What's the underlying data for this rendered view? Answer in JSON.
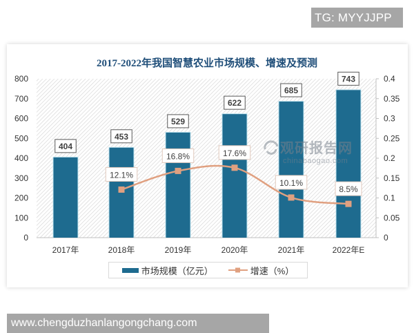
{
  "badges": {
    "top_right": "TG: MYYJJPP",
    "bottom_left": "www.chengduzhanlangongchang.com"
  },
  "watermark": {
    "cn": "观研报告网",
    "en": "chinabaogao.com"
  },
  "colors": {
    "bar": "#1e6b8f",
    "line": "#e0a080",
    "marker": "#e0a080",
    "title": "#1f4e79",
    "hatch": "#d4d4d4"
  },
  "chart_data": {
    "type": "bar",
    "title": "2017-2022年我国智慧农业市场规模、增速及预测",
    "categories": [
      "2017年",
      "2018年",
      "2019年",
      "2020年",
      "2021年",
      "2022年E"
    ],
    "series": [
      {
        "name": "市场规模（亿元）",
        "type": "bar",
        "axis": "left",
        "values": [
          404,
          453,
          529,
          622,
          685,
          743
        ],
        "labels": [
          "404",
          "453",
          "529",
          "622",
          "685",
          "743"
        ]
      },
      {
        "name": "增速（%）",
        "type": "line",
        "axis": "right",
        "values": [
          null,
          0.121,
          0.168,
          0.176,
          0.101,
          0.085
        ],
        "labels": [
          "",
          "12.1%",
          "16.8%",
          "17.6%",
          "10.1%",
          "8.5%"
        ]
      }
    ],
    "y_left": {
      "range": [
        0,
        800
      ],
      "ticks": [
        "0",
        "100",
        "200",
        "300",
        "400",
        "500",
        "600",
        "700",
        "800"
      ]
    },
    "y_right": {
      "range": [
        0,
        0.4
      ],
      "ticks": [
        "0",
        "0.05",
        "0.1",
        "0.15",
        "0.2",
        "0.25",
        "0.3",
        "0.35",
        "0.4"
      ]
    },
    "xlabel": "",
    "ylabel": "",
    "grid": false,
    "legend_position": "bottom"
  },
  "legend": {
    "bar_label": "市场规模（亿元）",
    "line_label": "增速（%）"
  }
}
